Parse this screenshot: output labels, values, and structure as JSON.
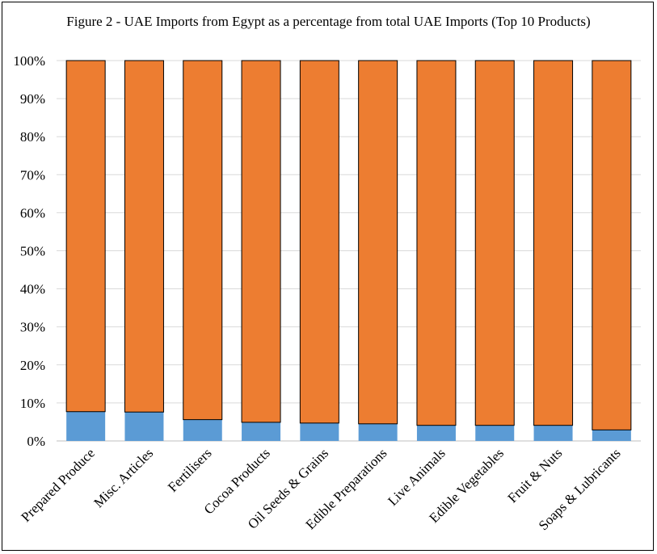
{
  "chart_data": {
    "type": "bar",
    "stacked": true,
    "normalized": true,
    "title": "Figure 2 - UAE Imports from Egypt as a percentage from total UAE Imports (Top 10 Products)",
    "xlabel": "",
    "ylabel": "",
    "ylim": [
      0,
      100
    ],
    "yticks": [
      "0%",
      "10%",
      "20%",
      "30%",
      "40%",
      "50%",
      "60%",
      "70%",
      "80%",
      "90%",
      "100%"
    ],
    "grid": true,
    "legend": "none",
    "categories": [
      "Prepared Produce",
      "Misc. Articles",
      "Fertilisers",
      "Cocoa Products",
      "Oil Seeds & Grains",
      "Edible Preparations",
      "Live Animals",
      "Edible Vegetables",
      "Fruit & Nuts",
      "Soaps & Lubricants"
    ],
    "series": [
      {
        "color": "#5B9BD5",
        "values": [
          7.7,
          7.6,
          5.6,
          4.9,
          4.7,
          4.5,
          4.1,
          4.1,
          4.1,
          2.9
        ]
      },
      {
        "color": "#ED7D31",
        "values": [
          92.3,
          92.4,
          94.4,
          95.1,
          95.3,
          95.5,
          95.9,
          95.9,
          95.9,
          97.1
        ]
      }
    ]
  }
}
